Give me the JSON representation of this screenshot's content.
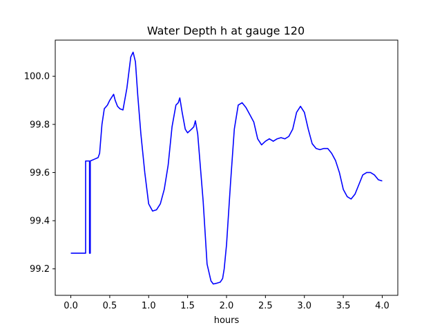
{
  "chart_data": {
    "type": "line",
    "title": "Water Depth h at gauge 120",
    "xlabel": "hours",
    "ylabel": "",
    "xlim": [
      -0.2,
      4.2
    ],
    "ylim": [
      99.09,
      100.15
    ],
    "x_ticks": [
      0.0,
      0.5,
      1.0,
      1.5,
      2.0,
      2.5,
      3.0,
      3.5,
      4.0
    ],
    "x_tick_labels": [
      "0.0",
      "0.5",
      "1.0",
      "1.5",
      "2.0",
      "2.5",
      "3.0",
      "3.5",
      "4.0"
    ],
    "y_ticks": [
      99.2,
      99.4,
      99.6,
      99.8,
      100.0
    ],
    "y_tick_labels": [
      "99.2",
      "99.4",
      "99.6",
      "99.8",
      "100.0"
    ],
    "grid": false,
    "series": [
      {
        "name": "",
        "color": "#0000ff",
        "x": [
          0.0,
          0.19,
          0.19,
          0.24,
          0.24,
          0.25,
          0.25,
          0.3,
          0.35,
          0.37,
          0.4,
          0.43,
          0.47,
          0.5,
          0.55,
          0.57,
          0.6,
          0.63,
          0.67,
          0.72,
          0.77,
          0.8,
          0.83,
          0.86,
          0.9,
          0.95,
          1.0,
          1.05,
          1.1,
          1.15,
          1.2,
          1.25,
          1.3,
          1.35,
          1.38,
          1.4,
          1.43,
          1.47,
          1.5,
          1.55,
          1.58,
          1.6,
          1.63,
          1.67,
          1.7,
          1.75,
          1.8,
          1.83,
          1.87,
          1.92,
          1.95,
          1.97,
          2.0,
          2.05,
          2.1,
          2.15,
          2.2,
          2.25,
          2.3,
          2.35,
          2.4,
          2.45,
          2.5,
          2.55,
          2.6,
          2.65,
          2.7,
          2.75,
          2.8,
          2.85,
          2.9,
          2.95,
          3.0,
          3.05,
          3.1,
          3.15,
          3.2,
          3.25,
          3.3,
          3.35,
          3.4,
          3.45,
          3.5,
          3.55,
          3.6,
          3.65,
          3.7,
          3.75,
          3.8,
          3.85,
          3.9,
          3.95,
          4.0
        ],
        "y": [
          99.265,
          99.265,
          99.648,
          99.648,
          99.265,
          99.265,
          99.648,
          99.655,
          99.662,
          99.68,
          99.8,
          99.865,
          99.88,
          99.9,
          99.925,
          99.9,
          99.875,
          99.865,
          99.86,
          99.95,
          100.08,
          100.1,
          100.06,
          99.92,
          99.76,
          99.6,
          99.47,
          99.44,
          99.445,
          99.47,
          99.53,
          99.63,
          99.79,
          99.88,
          99.89,
          99.91,
          99.85,
          99.78,
          99.765,
          99.78,
          99.79,
          99.815,
          99.76,
          99.6,
          99.48,
          99.22,
          99.15,
          99.137,
          99.14,
          99.145,
          99.16,
          99.2,
          99.3,
          99.55,
          99.78,
          99.88,
          99.89,
          99.87,
          99.84,
          99.81,
          99.74,
          99.715,
          99.73,
          99.74,
          99.73,
          99.74,
          99.745,
          99.74,
          99.75,
          99.78,
          99.85,
          99.875,
          99.85,
          99.78,
          99.72,
          99.7,
          99.695,
          99.7,
          99.7,
          99.68,
          99.65,
          99.6,
          99.53,
          99.5,
          99.49,
          99.51,
          99.55,
          99.59,
          99.6,
          99.6,
          99.59,
          99.57,
          99.565
        ]
      }
    ]
  }
}
